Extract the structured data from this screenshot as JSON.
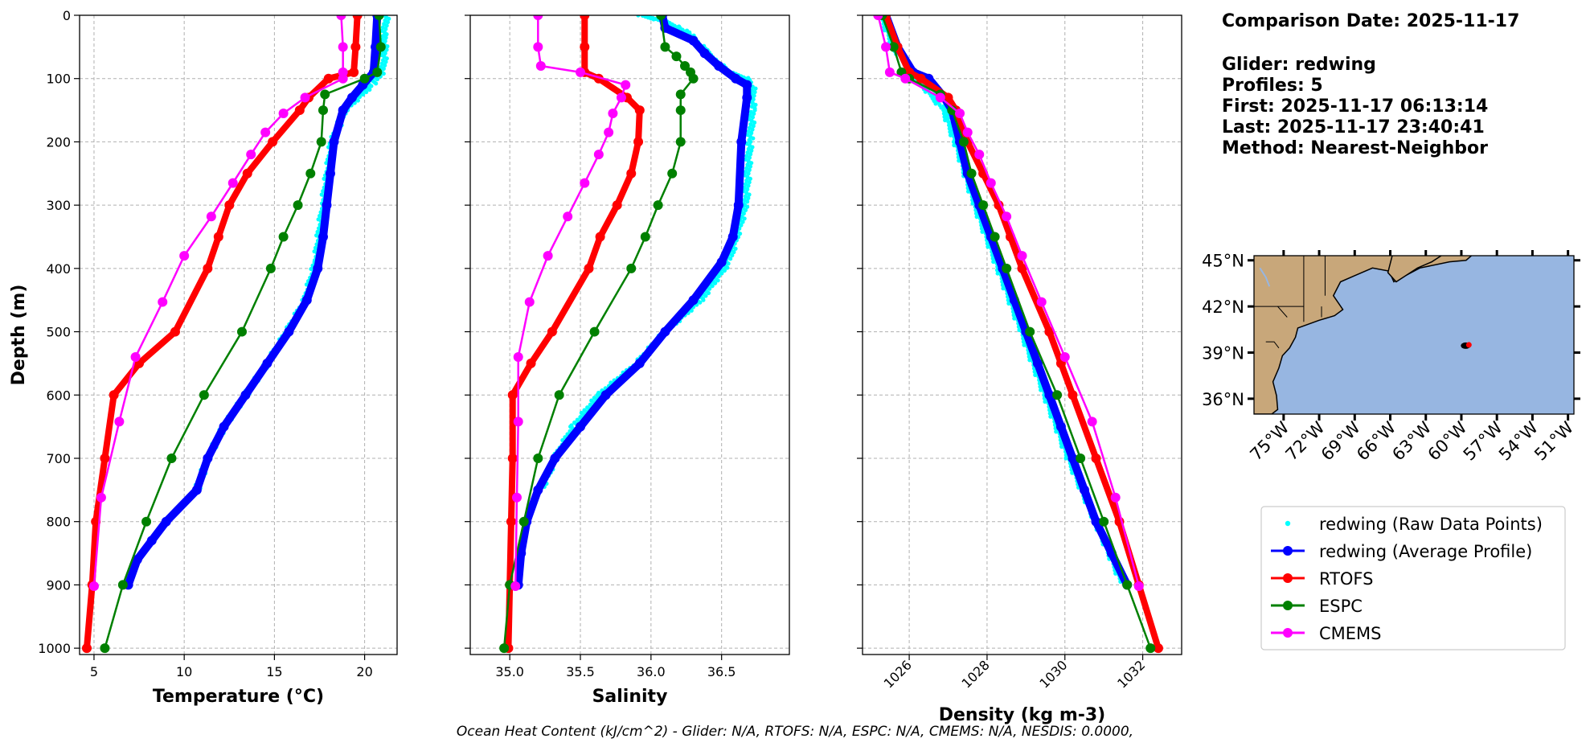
{
  "info": {
    "comparison_date": "Comparison Date: 2025-11-17",
    "glider": "Glider: redwing",
    "profiles": "Profiles: 5",
    "first": "First: 2025-11-17 06:13:14",
    "last": "Last: 2025-11-17 23:40:41",
    "method": "Method: Nearest-Neighbor"
  },
  "footer": "Ocean Heat Content (kJ/cm^2) - Glider: N/A,  RTOFS: N/A,  ESPC: N/A,  CMEMS: N/A,  NESDIS: 0.0000,",
  "colors": {
    "raw": "#00ffff",
    "avg": "#0000ff",
    "rtofs": "#ff0000",
    "espc": "#008000",
    "cmems": "#ff00ff"
  },
  "legend": [
    {
      "key": "raw",
      "label": "redwing (Raw Data Points)"
    },
    {
      "key": "avg",
      "label": "redwing (Average Profile)"
    },
    {
      "key": "rtofs",
      "label": "RTOFS"
    },
    {
      "key": "espc",
      "label": "ESPC"
    },
    {
      "key": "cmems",
      "label": "CMEMS"
    }
  ],
  "map": {
    "lat_labels": [
      "45°N",
      "42°N",
      "39°N",
      "36°N"
    ],
    "lon_labels": [
      "75°W",
      "72°W",
      "69°W",
      "66°W",
      "63°W",
      "60°W",
      "57°W",
      "54°W",
      "51°W"
    ],
    "lat_ticks": [
      45,
      42,
      39,
      36
    ],
    "lon_ticks": [
      -75,
      -72,
      -69,
      -66,
      -63,
      -60,
      -57,
      -54,
      -51
    ],
    "extent": {
      "lon": [
        -77.5,
        -50.5
      ],
      "lat": [
        35,
        45.3
      ]
    },
    "glider_position": {
      "lon": -59.5,
      "lat": 39.5
    },
    "ocean_color": "#97b6e1",
    "land_color": "#c8a77a"
  },
  "chart_data": [
    {
      "type": "line",
      "xlabel": "Temperature (°C)",
      "ylabel": "Depth (m)",
      "xlim": [
        4.2,
        21.8
      ],
      "ylim": [
        1010,
        0
      ],
      "xticks": [
        5,
        10,
        15,
        20
      ],
      "yticks": [
        0,
        100,
        200,
        300,
        400,
        500,
        600,
        700,
        800,
        900,
        1000
      ],
      "grid": true,
      "series": [
        {
          "key": "raw",
          "style": "dots",
          "depth": [
            0,
            30,
            60,
            90,
            110,
            150,
            200,
            300,
            390,
            450,
            500,
            550,
            600,
            650,
            700,
            750
          ],
          "values": [
            21.2,
            21.1,
            21.1,
            21.0,
            20.4,
            18.9,
            18.2,
            17.7,
            17.3,
            16.7,
            15.7,
            14.6,
            13.4,
            12.2,
            11.3,
            10.7
          ]
        },
        {
          "key": "avg",
          "style": "thick",
          "depth": [
            0,
            50,
            90,
            110,
            130,
            150,
            200,
            250,
            300,
            350,
            400,
            450,
            500,
            550,
            600,
            650,
            700,
            750,
            800,
            830,
            860,
            900
          ],
          "values": [
            20.7,
            20.6,
            20.5,
            19.9,
            19.3,
            18.8,
            18.3,
            18.1,
            17.9,
            17.7,
            17.4,
            16.8,
            15.8,
            14.6,
            13.4,
            12.2,
            11.3,
            10.7,
            9.0,
            8.2,
            7.4,
            6.9
          ]
        },
        {
          "key": "rtofs",
          "style": "thick-markers",
          "depth": [
            0,
            50,
            90,
            100,
            130,
            150,
            200,
            250,
            300,
            350,
            400,
            500,
            550,
            600,
            700,
            800,
            900,
            1000
          ],
          "values": [
            19.6,
            19.5,
            19.4,
            18.0,
            16.9,
            16.4,
            14.9,
            13.5,
            12.5,
            11.9,
            11.3,
            9.5,
            7.5,
            6.1,
            5.6,
            5.1,
            4.9,
            4.6
          ]
        },
        {
          "key": "espc",
          "style": "markers",
          "depth": [
            0,
            50,
            90,
            100,
            125,
            150,
            200,
            250,
            300,
            350,
            400,
            500,
            600,
            700,
            800,
            900,
            1000
          ],
          "values": [
            20.8,
            20.9,
            20.7,
            20.0,
            17.8,
            17.7,
            17.6,
            17.0,
            16.3,
            15.5,
            14.8,
            13.2,
            11.1,
            9.3,
            7.9,
            6.6,
            5.6
          ]
        },
        {
          "key": "cmems",
          "style": "markers",
          "depth": [
            0,
            50,
            90,
            100,
            130,
            155,
            185,
            220,
            265,
            318,
            380,
            453,
            540,
            642,
            762,
            902
          ],
          "values": [
            18.7,
            18.8,
            18.8,
            18.8,
            16.7,
            15.5,
            14.5,
            13.7,
            12.7,
            11.5,
            10.0,
            8.8,
            7.3,
            6.4,
            5.4,
            5.0
          ]
        }
      ]
    },
    {
      "type": "line",
      "xlabel": "Salinity",
      "xlim": [
        34.72,
        36.98
      ],
      "ylim": [
        1010,
        0
      ],
      "xticks": [
        35.0,
        35.5,
        36.0,
        36.5
      ],
      "xtick_labels": [
        "35.0",
        "35.5",
        "36.0",
        "36.5"
      ],
      "yticks": [
        0,
        100,
        200,
        300,
        400,
        500,
        600,
        700,
        800,
        900,
        1000
      ],
      "grid": true,
      "series": [
        {
          "key": "raw",
          "style": "dots",
          "depth": [
            0,
            10,
            20,
            30,
            40,
            55,
            70,
            90,
            100,
            110,
            150,
            200,
            300,
            390,
            450,
            500,
            550,
            600,
            650,
            700,
            750
          ],
          "values": [
            35.93,
            36.1,
            36.2,
            36.28,
            36.32,
            36.38,
            36.45,
            36.55,
            36.68,
            36.72,
            36.72,
            36.7,
            36.67,
            36.55,
            36.35,
            36.1,
            35.9,
            35.63,
            35.45,
            35.32,
            35.22
          ]
        },
        {
          "key": "avg",
          "style": "thick",
          "depth": [
            0,
            20,
            40,
            60,
            80,
            100,
            110,
            130,
            200,
            300,
            350,
            390,
            450,
            500,
            550,
            600,
            650,
            700,
            750,
            800,
            850,
            900
          ],
          "values": [
            36.08,
            36.1,
            36.3,
            36.38,
            36.48,
            36.6,
            36.68,
            36.68,
            36.64,
            36.62,
            36.58,
            36.5,
            36.3,
            36.1,
            35.92,
            35.68,
            35.5,
            35.32,
            35.2,
            35.12,
            35.08,
            35.06
          ]
        },
        {
          "key": "rtofs",
          "style": "thick-markers",
          "depth": [
            0,
            50,
            90,
            100,
            130,
            150,
            200,
            250,
            300,
            350,
            400,
            500,
            550,
            600,
            700,
            800,
            900,
            1000
          ],
          "values": [
            35.53,
            35.53,
            35.53,
            35.63,
            35.83,
            35.92,
            35.91,
            35.86,
            35.76,
            35.64,
            35.56,
            35.3,
            35.15,
            35.02,
            35.02,
            35.01,
            35.0,
            34.99
          ]
        },
        {
          "key": "espc",
          "style": "markers",
          "depth": [
            0,
            50,
            65,
            80,
            90,
            100,
            125,
            150,
            200,
            250,
            300,
            350,
            400,
            500,
            600,
            700,
            800,
            900,
            1000
          ],
          "values": [
            36.07,
            36.1,
            36.18,
            36.24,
            36.28,
            36.3,
            36.21,
            36.21,
            36.21,
            36.15,
            36.05,
            35.96,
            35.86,
            35.6,
            35.35,
            35.2,
            35.1,
            35.0,
            34.96
          ]
        },
        {
          "key": "cmems",
          "style": "markers",
          "depth": [
            0,
            50,
            80,
            90,
            110,
            130,
            155,
            185,
            220,
            265,
            318,
            380,
            453,
            540,
            642,
            762,
            902
          ],
          "values": [
            35.2,
            35.2,
            35.22,
            35.5,
            35.82,
            35.79,
            35.73,
            35.7,
            35.63,
            35.53,
            35.41,
            35.27,
            35.14,
            35.06,
            35.06,
            35.05,
            35.04
          ]
        }
      ]
    },
    {
      "type": "line",
      "xlabel": "Density (kg m-3)",
      "xlim": [
        1024.8,
        1033.0
      ],
      "ylim": [
        1010,
        0
      ],
      "xticks": [
        1026,
        1028,
        1030,
        1032
      ],
      "yticks": [
        0,
        100,
        200,
        300,
        400,
        500,
        600,
        700,
        800,
        900,
        1000
      ],
      "grid": true,
      "series": [
        {
          "key": "raw",
          "style": "dots",
          "depth": [
            0,
            50,
            100,
            150,
            200,
            300,
            400,
            500,
            600,
            700,
            800,
            900
          ],
          "values": [
            1025.3,
            1025.6,
            1026.2,
            1026.9,
            1027.2,
            1027.7,
            1028.3,
            1028.9,
            1029.5,
            1030.1,
            1030.8,
            1031.5
          ]
        },
        {
          "key": "avg",
          "style": "thick",
          "depth": [
            0,
            50,
            90,
            100,
            130,
            150,
            200,
            250,
            300,
            350,
            400,
            450,
            500,
            550,
            600,
            650,
            700,
            750,
            800,
            850,
            900
          ],
          "values": [
            1025.4,
            1025.7,
            1026.1,
            1026.5,
            1026.9,
            1027.1,
            1027.3,
            1027.5,
            1027.8,
            1028.1,
            1028.4,
            1028.7,
            1029.0,
            1029.3,
            1029.6,
            1029.9,
            1030.2,
            1030.5,
            1030.8,
            1031.2,
            1031.6
          ]
        },
        {
          "key": "rtofs",
          "style": "thick-markers",
          "depth": [
            0,
            50,
            90,
            100,
            130,
            150,
            200,
            250,
            300,
            350,
            400,
            500,
            550,
            600,
            700,
            800,
            900,
            1000
          ],
          "values": [
            1025.4,
            1025.7,
            1026.0,
            1026.3,
            1027.0,
            1027.2,
            1027.5,
            1027.9,
            1028.3,
            1028.6,
            1028.9,
            1029.6,
            1029.9,
            1030.2,
            1030.8,
            1031.4,
            1031.9,
            1032.4
          ]
        },
        {
          "key": "espc",
          "style": "markers",
          "depth": [
            0,
            50,
            90,
            100,
            125,
            150,
            200,
            250,
            300,
            350,
            400,
            500,
            600,
            700,
            800,
            900,
            1000
          ],
          "values": [
            1025.3,
            1025.6,
            1025.8,
            1026.0,
            1026.8,
            1027.1,
            1027.4,
            1027.6,
            1027.9,
            1028.2,
            1028.5,
            1029.1,
            1029.8,
            1030.4,
            1031.0,
            1031.6,
            1032.2
          ]
        },
        {
          "key": "cmems",
          "style": "markers",
          "depth": [
            0,
            50,
            90,
            100,
            130,
            155,
            185,
            220,
            265,
            318,
            380,
            453,
            540,
            642,
            762,
            902
          ],
          "values": [
            1025.2,
            1025.4,
            1025.5,
            1025.9,
            1026.8,
            1027.3,
            1027.5,
            1027.8,
            1028.1,
            1028.5,
            1028.9,
            1029.4,
            1030.0,
            1030.7,
            1031.3,
            1031.9
          ]
        }
      ]
    }
  ]
}
